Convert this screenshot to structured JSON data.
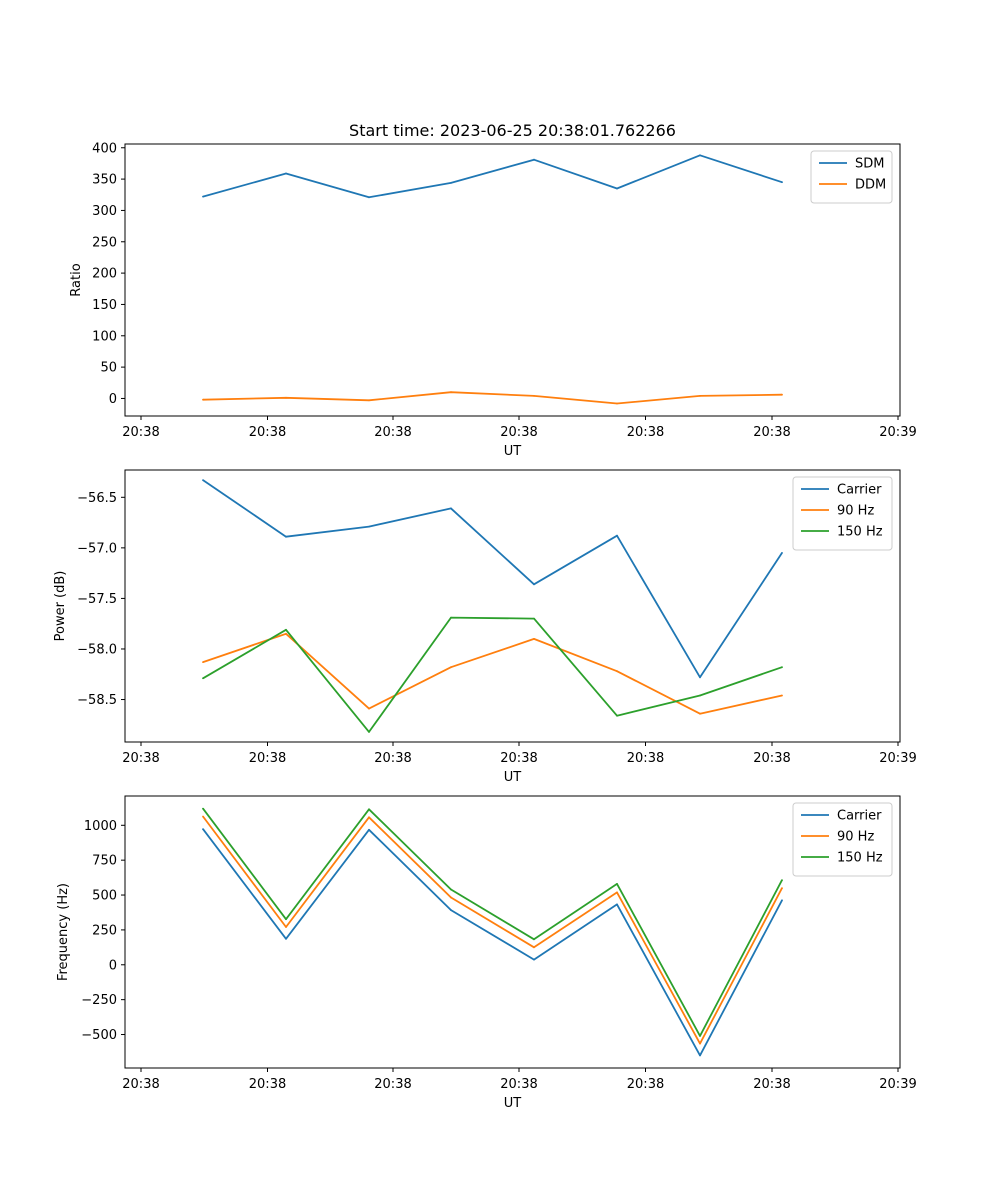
{
  "figure": {
    "title": "Start time: 2023-06-25 20:38:01.762266"
  },
  "chart_data": [
    {
      "type": "line",
      "title": "Start time: 2023-06-25 20:38:01.762266",
      "xlabel": "UT",
      "ylabel": "Ratio",
      "x_ticks": [
        "20:38",
        "20:38",
        "20:38",
        "20:38",
        "20:38",
        "20:38",
        "20:39"
      ],
      "y_ticks": [
        "0",
        "50",
        "100",
        "150",
        "200",
        "250",
        "300",
        "350",
        "400"
      ],
      "ylim": [
        -28,
        406
      ],
      "legend_position": "upper-right",
      "grid": false,
      "series": [
        {
          "name": "SDM",
          "color": "#1f77b4",
          "values": [
            322,
            359,
            321,
            344,
            381,
            335,
            388,
            345
          ]
        },
        {
          "name": "DDM",
          "color": "#ff7f0e",
          "values": [
            -2,
            1,
            -3,
            10,
            4,
            -8,
            4,
            6
          ]
        }
      ]
    },
    {
      "type": "line",
      "title": "",
      "xlabel": "UT",
      "ylabel": "Power (dB)",
      "x_ticks": [
        "20:38",
        "20:38",
        "20:38",
        "20:38",
        "20:38",
        "20:38",
        "20:39"
      ],
      "y_ticks": [
        "−56.5",
        "−57.0",
        "−57.5",
        "−58.0",
        "−58.5"
      ],
      "ylim": [
        -58.92,
        -56.23
      ],
      "legend_position": "upper-right",
      "grid": false,
      "series": [
        {
          "name": "Carrier",
          "color": "#1f77b4",
          "values": [
            -56.33,
            -56.89,
            -56.79,
            -56.61,
            -57.36,
            -56.88,
            -58.28,
            -57.05
          ]
        },
        {
          "name": "90 Hz",
          "color": "#ff7f0e",
          "values": [
            -58.13,
            -57.85,
            -58.59,
            -58.18,
            -57.9,
            -58.22,
            -58.64,
            -58.46
          ]
        },
        {
          "name": "150 Hz",
          "color": "#2ca02c",
          "values": [
            -58.29,
            -57.81,
            -58.82,
            -57.69,
            -57.7,
            -58.66,
            -58.46,
            -58.18
          ]
        }
      ]
    },
    {
      "type": "line",
      "title": "",
      "xlabel": "UT",
      "ylabel": "Frequency (Hz)",
      "x_ticks": [
        "20:38",
        "20:38",
        "20:38",
        "20:38",
        "20:38",
        "20:38",
        "20:39"
      ],
      "y_ticks": [
        "−500",
        "−250",
        "0",
        "250",
        "500",
        "750",
        "1000"
      ],
      "ylim": [
        -740,
        1210
      ],
      "legend_position": "upper-right",
      "grid": false,
      "series": [
        {
          "name": "Carrier",
          "color": "#1f77b4",
          "values": [
            973,
            186,
            968,
            392,
            37,
            433,
            -650,
            462
          ]
        },
        {
          "name": "90 Hz",
          "color": "#ff7f0e",
          "values": [
            1063,
            271,
            1057,
            482,
            125,
            519,
            -565,
            550
          ]
        },
        {
          "name": "150 Hz",
          "color": "#2ca02c",
          "values": [
            1120,
            327,
            1115,
            540,
            183,
            580,
            -510,
            607
          ]
        }
      ]
    }
  ]
}
